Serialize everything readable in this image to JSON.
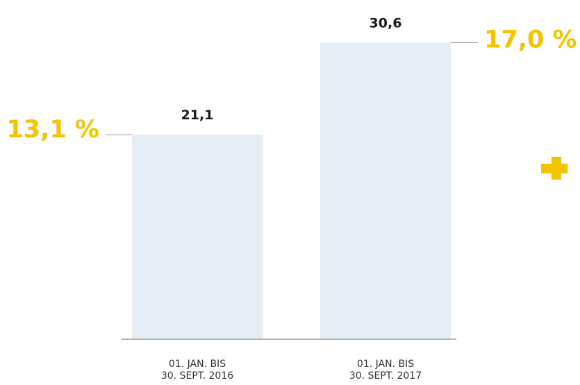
{
  "chart_data": {
    "type": "bar",
    "categories": [
      [
        "01. JAN. BIS",
        "30. SEPT. 2016"
      ],
      [
        "01. JAN. BIS",
        "30. SEPT. 2017"
      ]
    ],
    "values": [
      21.1,
      30.6
    ],
    "value_labels": [
      "21,1",
      "30,6"
    ],
    "annotations": [
      "13,1 %",
      "17,0 %"
    ],
    "ylim": [
      0,
      35
    ],
    "grid": false,
    "legend": "none",
    "title": "",
    "xlabel": "",
    "ylabel": ""
  },
  "decor": {
    "icon": "plus-icon"
  },
  "colors": {
    "bar": "#e4eef4",
    "accent": "#f5c400",
    "baseline": "#999999",
    "leader": "#999999"
  }
}
